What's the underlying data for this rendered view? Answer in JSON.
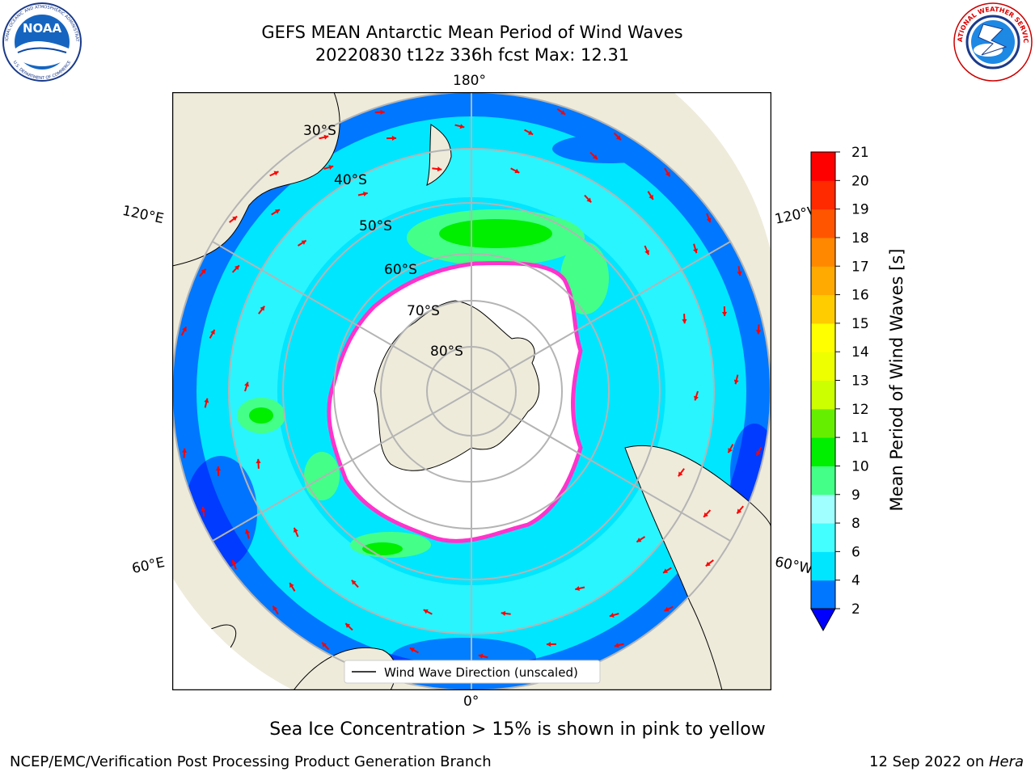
{
  "title": {
    "line1": "GEFS MEAN Antarctic Mean Period of Wind Waves",
    "line2": "20220830 t12z 336h fcst   Max: 12.31"
  },
  "map": {
    "projection": "south-polar-stereographic",
    "lon_labels": [
      "180°",
      "120°E",
      "120°W",
      "60°E",
      "60°W",
      "0°"
    ],
    "lat_labels": [
      "30°S",
      "40°S",
      "50°S",
      "60°S",
      "70°S",
      "80°S"
    ],
    "legend_label": "Wind Wave Direction (unscaled)",
    "colors": {
      "land": "#eeebdb",
      "ice_edge": "#ff33cc",
      "grid": "#b4b4b4",
      "arrow": "#ff0000"
    }
  },
  "colorbar": {
    "label": "Mean Period of Wind Waves [s]",
    "ticks": [
      "2",
      "4",
      "6",
      "8",
      "9",
      "10",
      "11",
      "12",
      "13",
      "14",
      "15",
      "16",
      "17",
      "18",
      "19",
      "20",
      "21"
    ],
    "colors": [
      "#0000ff",
      "#0077ff",
      "#00e6ff",
      "#44ffff",
      "#a0ffff",
      "#44ff88",
      "#00ee00",
      "#66ee00",
      "#ccff00",
      "#eeff00",
      "#ffff00",
      "#ffcc00",
      "#ffaa00",
      "#ff8800",
      "#ff5500",
      "#ff2a00",
      "#ff0000"
    ],
    "extend_under_color": "#0000ff"
  },
  "note": "Sea Ice Concentration > 15% is shown in pink to yellow",
  "footer": {
    "left": "NCEP/EMC/Verification Post Processing Product Generation Branch",
    "right_date": "12 Sep 2022 on ",
    "right_machine": "Hera"
  },
  "logos": {
    "noaa_text": "NOAA",
    "noaa_ring_top": "NATIONAL OCEANIC AND ATMOSPHERIC ADMINISTRATION",
    "noaa_ring_bottom": "U.S. DEPARTMENT OF COMMERCE",
    "nws_ring": "NATIONAL WEATHER SERVICE"
  }
}
